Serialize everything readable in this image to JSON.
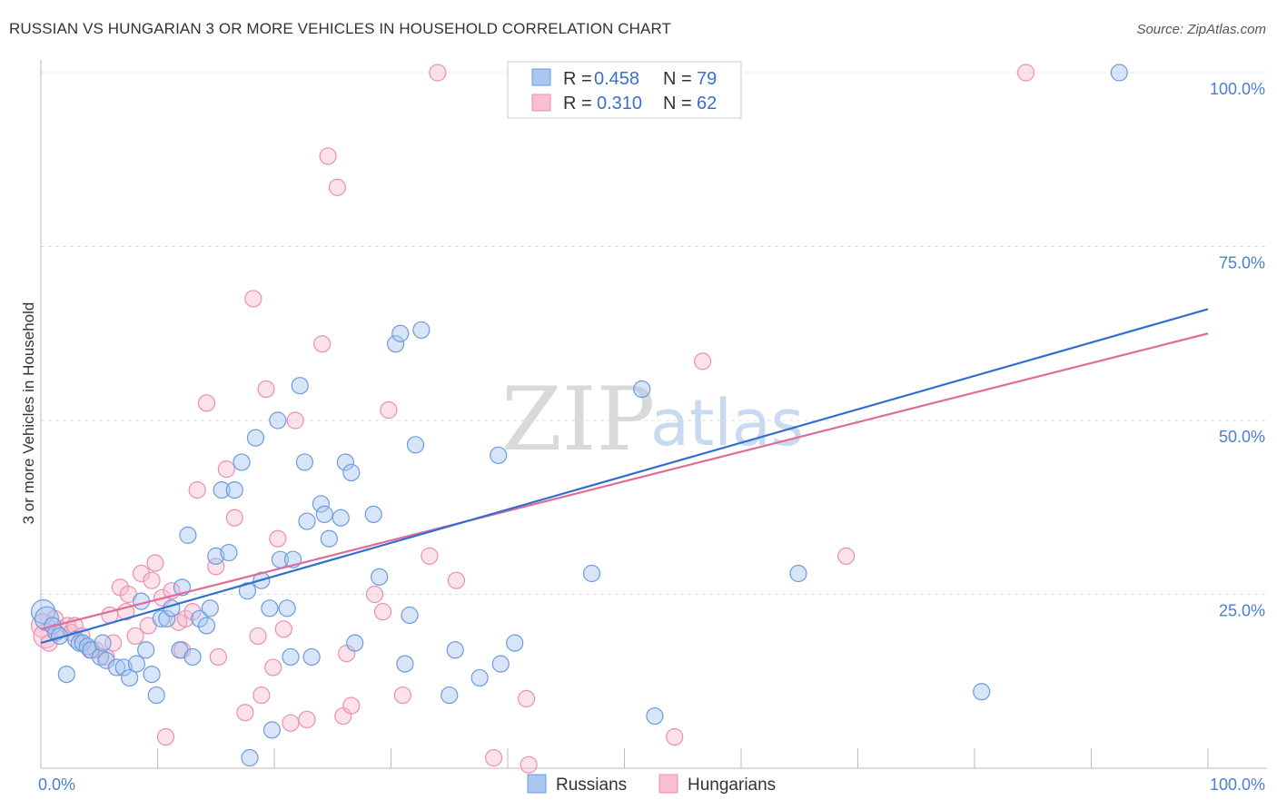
{
  "title": "RUSSIAN VS HUNGARIAN 3 OR MORE VEHICLES IN HOUSEHOLD CORRELATION CHART",
  "source": "Source: ZipAtlas.com",
  "watermark": {
    "zip": "ZIP",
    "atlas": "atlas"
  },
  "colors": {
    "russians_fill": "#a9c6f0",
    "russians_stroke": "#6b9be0",
    "russians_line": "#2f6fd0",
    "hungarians_fill": "#f7bfd0",
    "hungarians_stroke": "#ec8fae",
    "hungarians_line": "#e06b98"
  },
  "legend": {
    "r_label": "R =",
    "n_label": "N =",
    "russians": {
      "r": "0.458",
      "n": "79"
    },
    "hungarians": {
      "r": "0.310",
      "n": "62"
    }
  },
  "chart_data": {
    "type": "scatter",
    "title": "RUSSIAN VS HUNGARIAN 3 OR MORE VEHICLES IN HOUSEHOLD CORRELATION CHART",
    "xlabel": "",
    "ylabel": "3 or more Vehicles in Household",
    "xlim": [
      0,
      100
    ],
    "ylim": [
      0,
      100
    ],
    "x_tick_labels": [
      "0.0%",
      "100.0%"
    ],
    "y_ticks": [
      25,
      50,
      75,
      100
    ],
    "y_tick_labels": [
      "25.0%",
      "50.0%",
      "75.0%",
      "100.0%"
    ],
    "grid": true,
    "legend_position": "bottom-center",
    "series": [
      {
        "name": "Russians",
        "regression": {
          "x": [
            0,
            100
          ],
          "y": [
            18,
            66
          ]
        },
        "points": [
          [
            0.2,
            22.5
          ],
          [
            0.5,
            21.5
          ],
          [
            1,
            20.5
          ],
          [
            1.3,
            19.5
          ],
          [
            1.6,
            19
          ],
          [
            2.2,
            13.5
          ],
          [
            3,
            18.5
          ],
          [
            3.3,
            18
          ],
          [
            3.6,
            18
          ],
          [
            4,
            17.5
          ],
          [
            4.3,
            17
          ],
          [
            5.1,
            16
          ],
          [
            5.3,
            18
          ],
          [
            5.6,
            15.5
          ],
          [
            6.5,
            14.5
          ],
          [
            7.1,
            14.5
          ],
          [
            7.6,
            13
          ],
          [
            8.2,
            15
          ],
          [
            8.6,
            24
          ],
          [
            9,
            17
          ],
          [
            9.5,
            13.5
          ],
          [
            9.9,
            10.5
          ],
          [
            10.3,
            21.5
          ],
          [
            10.8,
            21.5
          ],
          [
            11.2,
            23
          ],
          [
            11.9,
            17
          ],
          [
            12.1,
            26
          ],
          [
            12.6,
            33.5
          ],
          [
            13,
            16
          ],
          [
            13.6,
            21.5
          ],
          [
            14.2,
            20.5
          ],
          [
            14.5,
            23
          ],
          [
            15,
            30.5
          ],
          [
            15.5,
            40
          ],
          [
            16.1,
            31
          ],
          [
            16.6,
            40
          ],
          [
            17.2,
            44
          ],
          [
            17.7,
            25.5
          ],
          [
            17.9,
            1.5
          ],
          [
            18.4,
            47.5
          ],
          [
            18.9,
            27
          ],
          [
            19.6,
            23
          ],
          [
            19.8,
            5.5
          ],
          [
            20.3,
            50
          ],
          [
            20.5,
            30
          ],
          [
            21.1,
            23
          ],
          [
            21.4,
            16
          ],
          [
            21.6,
            30
          ],
          [
            22.2,
            55
          ],
          [
            22.6,
            44
          ],
          [
            22.8,
            35.5
          ],
          [
            23.2,
            16
          ],
          [
            24,
            38
          ],
          [
            24.3,
            36.5
          ],
          [
            24.7,
            33
          ],
          [
            25.7,
            36
          ],
          [
            26.1,
            44
          ],
          [
            26.6,
            42.5
          ],
          [
            26.9,
            18
          ],
          [
            28.5,
            36.5
          ],
          [
            29,
            27.5
          ],
          [
            30.4,
            61
          ],
          [
            30.8,
            62.5
          ],
          [
            31.2,
            15
          ],
          [
            31.6,
            22
          ],
          [
            32.1,
            46.5
          ],
          [
            32.6,
            63
          ],
          [
            35,
            10.5
          ],
          [
            35.5,
            17
          ],
          [
            37.6,
            13
          ],
          [
            39.2,
            45
          ],
          [
            39.4,
            15
          ],
          [
            40.6,
            18
          ],
          [
            47.2,
            28
          ],
          [
            51.5,
            54.5
          ],
          [
            52.6,
            7.5
          ],
          [
            64.9,
            28
          ],
          [
            80.6,
            11
          ],
          [
            92.4,
            100
          ]
        ]
      },
      {
        "name": "Hungarians",
        "regression": {
          "x": [
            0,
            100
          ],
          "y": [
            20,
            62.5
          ]
        },
        "points": [
          [
            0.2,
            20.5
          ],
          [
            0.4,
            19
          ],
          [
            0.7,
            18
          ],
          [
            1.2,
            21.5
          ],
          [
            1.7,
            20
          ],
          [
            2.3,
            20.5
          ],
          [
            2.6,
            19.5
          ],
          [
            2.9,
            20.5
          ],
          [
            3.5,
            19
          ],
          [
            4.2,
            17
          ],
          [
            4.7,
            17
          ],
          [
            5.6,
            16
          ],
          [
            5.9,
            22
          ],
          [
            6.2,
            18
          ],
          [
            6.8,
            26
          ],
          [
            7.3,
            22.5
          ],
          [
            7.5,
            25
          ],
          [
            8.1,
            19
          ],
          [
            8.6,
            28
          ],
          [
            9.2,
            20.5
          ],
          [
            9.5,
            27
          ],
          [
            9.8,
            29.5
          ],
          [
            10.4,
            24.5
          ],
          [
            10.7,
            4.5
          ],
          [
            11.2,
            25.5
          ],
          [
            11.8,
            21
          ],
          [
            12.1,
            17
          ],
          [
            12.4,
            21.5
          ],
          [
            13,
            22.5
          ],
          [
            13.4,
            40
          ],
          [
            14.2,
            52.5
          ],
          [
            15,
            29
          ],
          [
            15.2,
            16
          ],
          [
            15.9,
            43
          ],
          [
            16.6,
            36
          ],
          [
            17.5,
            8
          ],
          [
            18.2,
            67.5
          ],
          [
            18.6,
            19
          ],
          [
            18.9,
            10.5
          ],
          [
            19.3,
            54.5
          ],
          [
            19.9,
            14.5
          ],
          [
            20.3,
            33
          ],
          [
            20.8,
            20
          ],
          [
            21.4,
            6.5
          ],
          [
            21.8,
            50
          ],
          [
            22.8,
            7
          ],
          [
            24.1,
            61
          ],
          [
            24.6,
            88
          ],
          [
            25.4,
            83.5
          ],
          [
            25.9,
            7.5
          ],
          [
            26.2,
            16.5
          ],
          [
            26.6,
            9
          ],
          [
            28.6,
            25
          ],
          [
            29.3,
            22.5
          ],
          [
            29.8,
            51.5
          ],
          [
            31,
            10.5
          ],
          [
            33.3,
            30.5
          ],
          [
            34,
            100
          ],
          [
            35.6,
            27
          ],
          [
            38.8,
            1.5
          ],
          [
            41.6,
            10
          ],
          [
            41.8,
            0.5
          ]
        ]
      }
    ],
    "extra_hungarian_points": [
      [
        54.3,
        4.5
      ],
      [
        56.7,
        58.5
      ],
      [
        69,
        30.5
      ],
      [
        84.4,
        100
      ]
    ]
  },
  "bottom_legend": {
    "russians": "Russians",
    "hungarians": "Hungarians"
  }
}
